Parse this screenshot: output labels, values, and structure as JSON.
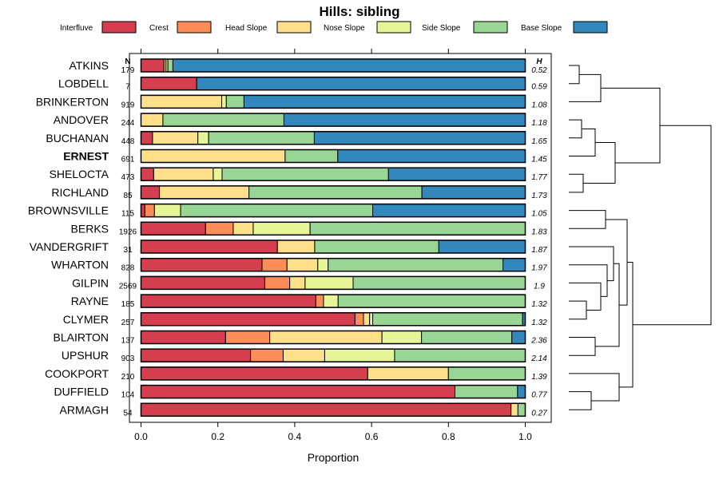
{
  "chart_data": {
    "type": "bar",
    "orientation": "horizontal",
    "stacked": true,
    "title": "Hills: sibling",
    "xlabel": "Proportion",
    "ylabel": "",
    "xlim": [
      0,
      1
    ],
    "xticks": [
      "0.0",
      "0.2",
      "0.4",
      "0.6",
      "0.8",
      "1.0"
    ],
    "n_header": "N",
    "h_header": "H",
    "legend": [
      {
        "name": "Interfluve",
        "color": "#d53e4f"
      },
      {
        "name": "Crest",
        "color": "#fc8d59"
      },
      {
        "name": "Head Slope",
        "color": "#fee08b"
      },
      {
        "name": "Nose Slope",
        "color": "#e6f598"
      },
      {
        "name": "Side Slope",
        "color": "#99d594"
      },
      {
        "name": "Base Slope",
        "color": "#3288bd"
      }
    ],
    "categories": [
      "ATKINS",
      "LOBDELL",
      "BRINKERTON",
      "ANDOVER",
      "BUCHANAN",
      "ERNEST",
      "SHELOCTA",
      "RICHLAND",
      "BROWNSVILLE",
      "BERKS",
      "VANDERGRIFT",
      "WHARTON",
      "GILPIN",
      "RAYNE",
      "CLYMER",
      "BLAIRTON",
      "UPSHUR",
      "COOKPORT",
      "DUFFIELD",
      "ARMAGH"
    ],
    "highlight": "ERNEST",
    "n": [
      "179",
      "7",
      "919",
      "244",
      "448",
      "691",
      "473",
      "85",
      "115",
      "1926",
      "31",
      "828",
      "2569",
      "185",
      "257",
      "137",
      "903",
      "210",
      "104",
      "54"
    ],
    "h": [
      "0.52",
      "0.59",
      "1.08",
      "1.18",
      "1.65",
      "1.45",
      "1.77",
      "1.73",
      "1.05",
      "1.83",
      "1.87",
      "1.97",
      "1.9",
      "1.32",
      "1.32",
      "2.36",
      "2.14",
      "1.39",
      "0.77",
      "0.27"
    ],
    "series": [
      {
        "name": "Interfluve",
        "values": [
          0.06,
          0.145,
          0,
          0,
          0.03,
          0,
          0.033,
          0.048,
          0.01,
          0.168,
          0.355,
          0.315,
          0.322,
          0.455,
          0.557,
          0.22,
          0.285,
          0.59,
          0.817,
          0.963
        ]
      },
      {
        "name": "Crest",
        "values": [
          0,
          0,
          0,
          0,
          0,
          0,
          0,
          0,
          0.025,
          0.072,
          0,
          0.065,
          0.065,
          0.02,
          0.022,
          0.115,
          0.085,
          0,
          0,
          0
        ]
      },
      {
        "name": "Head Slope",
        "values": [
          0.005,
          0,
          0.21,
          0.057,
          0.118,
          0.375,
          0.155,
          0.233,
          0,
          0.052,
          0.097,
          0.08,
          0.04,
          0,
          0.016,
          0.292,
          0.108,
          0.21,
          0,
          0.018
        ]
      },
      {
        "name": "Nose Slope",
        "values": [
          0.005,
          0,
          0.012,
          0,
          0.028,
          0,
          0.023,
          0,
          0.068,
          0.148,
          0,
          0.027,
          0.125,
          0.038,
          0.008,
          0.103,
          0.182,
          0,
          0,
          0
        ]
      },
      {
        "name": "Side Slope",
        "values": [
          0.013,
          0,
          0.046,
          0.315,
          0.275,
          0.137,
          0.433,
          0.45,
          0.5,
          0.56,
          0.323,
          0.455,
          0.448,
          0.487,
          0.39,
          0.235,
          0.34,
          0.2,
          0.163,
          0.019
        ]
      },
      {
        "name": "Base Slope",
        "values": [
          0.917,
          0.855,
          0.732,
          0.628,
          0.549,
          0.488,
          0.356,
          0.269,
          0.397,
          0,
          0.225,
          0.058,
          0,
          0,
          0.007,
          0.035,
          0,
          0,
          0.02,
          0
        ]
      }
    ],
    "dendrogram": "average-linkage tree ordering the 20 soil series"
  }
}
